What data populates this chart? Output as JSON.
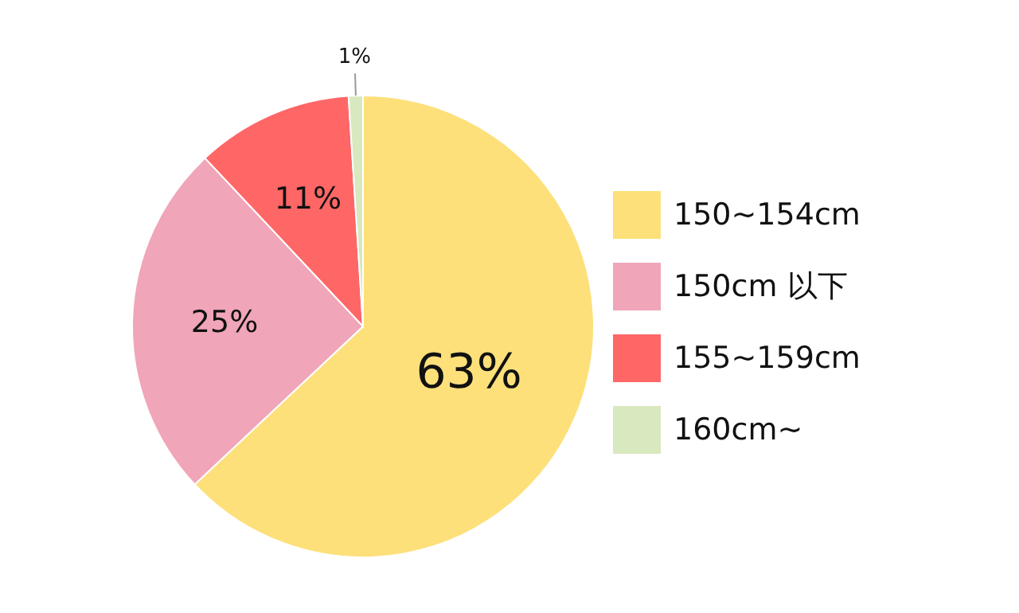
{
  "chart_data": {
    "type": "pie",
    "categories": [
      "150~154cm",
      "150cm 以下",
      "155~159cm",
      "160cm~"
    ],
    "values": [
      63,
      25,
      11,
      1
    ],
    "value_labels": [
      "63%",
      "25%",
      "11%",
      "1%"
    ],
    "colors": [
      "#fde07a",
      "#f0a5b8",
      "#ff6666",
      "#d8e8bf"
    ],
    "legend": "right"
  }
}
